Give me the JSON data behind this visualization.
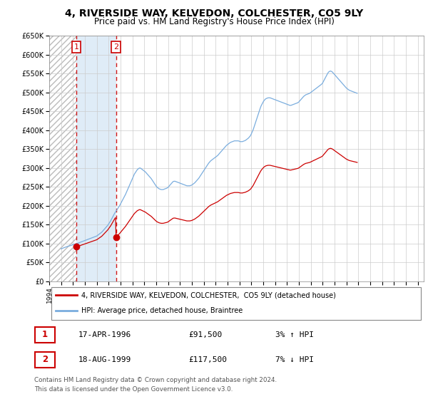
{
  "title": "4, RIVERSIDE WAY, KELVEDON, COLCHESTER, CO5 9LY",
  "subtitle": "Price paid vs. HM Land Registry's House Price Index (HPI)",
  "sales": [
    {
      "date_num": 1996.29,
      "price": 91500,
      "label": "1"
    },
    {
      "date_num": 1999.62,
      "price": 117500,
      "label": "2"
    }
  ],
  "hpi_monthly": {
    "start_year": 1995.0,
    "step": 0.0833,
    "values": [
      86000,
      87000,
      88000,
      89000,
      90000,
      91000,
      92000,
      93000,
      93500,
      94000,
      95000,
      96000,
      97000,
      98000,
      99000,
      99500,
      100000,
      101000,
      102000,
      103000,
      104000,
      105000,
      106000,
      107000,
      108000,
      109000,
      110000,
      111000,
      112000,
      113000,
      114000,
      115000,
      116000,
      117000,
      118000,
      119000,
      120000,
      122000,
      124000,
      126000,
      128000,
      130000,
      133000,
      136000,
      139000,
      142000,
      145000,
      148000,
      152000,
      156000,
      160000,
      165000,
      170000,
      175000,
      180000,
      184000,
      188000,
      192000,
      196000,
      200000,
      205000,
      210000,
      215000,
      220000,
      225000,
      230000,
      236000,
      242000,
      248000,
      254000,
      260000,
      266000,
      272000,
      278000,
      284000,
      288000,
      292000,
      296000,
      298000,
      300000,
      300000,
      298000,
      296000,
      294000,
      292000,
      290000,
      287000,
      284000,
      281000,
      278000,
      275000,
      272000,
      268000,
      264000,
      260000,
      256000,
      252000,
      249000,
      247000,
      245000,
      244000,
      243000,
      243000,
      243000,
      244000,
      245000,
      246000,
      247000,
      249000,
      252000,
      255000,
      258000,
      261000,
      264000,
      265000,
      265000,
      264000,
      263000,
      262000,
      261000,
      260000,
      259000,
      258000,
      257000,
      256000,
      255000,
      254000,
      253000,
      253000,
      253000,
      253000,
      254000,
      255000,
      257000,
      259000,
      261000,
      264000,
      267000,
      270000,
      273000,
      277000,
      281000,
      285000,
      289000,
      293000,
      297000,
      301000,
      305000,
      309000,
      313000,
      316000,
      319000,
      321000,
      323000,
      325000,
      327000,
      329000,
      331000,
      333000,
      336000,
      339000,
      342000,
      345000,
      348000,
      351000,
      354000,
      357000,
      360000,
      362000,
      364000,
      366000,
      368000,
      369000,
      370000,
      371000,
      372000,
      372000,
      372000,
      372000,
      372000,
      371000,
      370000,
      370000,
      370000,
      371000,
      372000,
      373000,
      375000,
      377000,
      379000,
      382000,
      385000,
      390000,
      396000,
      402000,
      410000,
      418000,
      426000,
      434000,
      442000,
      450000,
      458000,
      465000,
      470000,
      475000,
      479000,
      482000,
      484000,
      485000,
      486000,
      486000,
      486000,
      485000,
      484000,
      483000,
      482000,
      481000,
      480000,
      479000,
      478000,
      477000,
      476000,
      475000,
      474000,
      473000,
      472000,
      471000,
      470000,
      469000,
      468000,
      467000,
      466000,
      466000,
      467000,
      468000,
      469000,
      470000,
      471000,
      472000,
      473000,
      475000,
      478000,
      481000,
      484000,
      487000,
      490000,
      492000,
      494000,
      495000,
      496000,
      497000,
      498000,
      500000,
      502000,
      504000,
      506000,
      508000,
      510000,
      512000,
      514000,
      516000,
      518000,
      520000,
      522000,
      525000,
      530000,
      535000,
      540000,
      545000,
      550000,
      554000,
      556000,
      557000,
      556000,
      554000,
      551000,
      548000,
      545000,
      542000,
      539000,
      536000,
      533000,
      530000,
      527000,
      524000,
      521000,
      518000,
      515000,
      512000,
      510000,
      508000,
      506000,
      505000,
      504000,
      503000,
      502000,
      501000,
      500000,
      499000,
      498000
    ]
  },
  "ylim": [
    0,
    650000
  ],
  "yticks": [
    0,
    50000,
    100000,
    150000,
    200000,
    250000,
    300000,
    350000,
    400000,
    450000,
    500000,
    550000,
    600000,
    650000
  ],
  "xlim": [
    1994.0,
    2025.5
  ],
  "xticks": [
    1994,
    1995,
    1996,
    1997,
    1998,
    1999,
    2000,
    2001,
    2002,
    2003,
    2004,
    2005,
    2006,
    2007,
    2008,
    2009,
    2010,
    2011,
    2012,
    2013,
    2014,
    2015,
    2016,
    2017,
    2018,
    2019,
    2020,
    2021,
    2022,
    2023,
    2024,
    2025
  ],
  "hpi_color": "#7aadde",
  "sale_color": "#cc0000",
  "shade_color": "#d8e8f5",
  "grid_color": "#cccccc",
  "bg_color": "#ffffff",
  "legend_entries": [
    {
      "label": "4, RIVERSIDE WAY, KELVEDON, COLCHESTER,  CO5 9LY (detached house)",
      "color": "#cc0000"
    },
    {
      "label": "HPI: Average price, detached house, Braintree",
      "color": "#7aadde"
    }
  ],
  "table_rows": [
    {
      "num": "1",
      "date": "17-APR-1996",
      "price": "£91,500",
      "hpi": "3% ↑ HPI"
    },
    {
      "num": "2",
      "date": "18-AUG-1999",
      "price": "£117,500",
      "hpi": "7% ↓ HPI"
    }
  ],
  "footer": "Contains HM Land Registry data © Crown copyright and database right 2024.\nThis data is licensed under the Open Government Licence v3.0."
}
